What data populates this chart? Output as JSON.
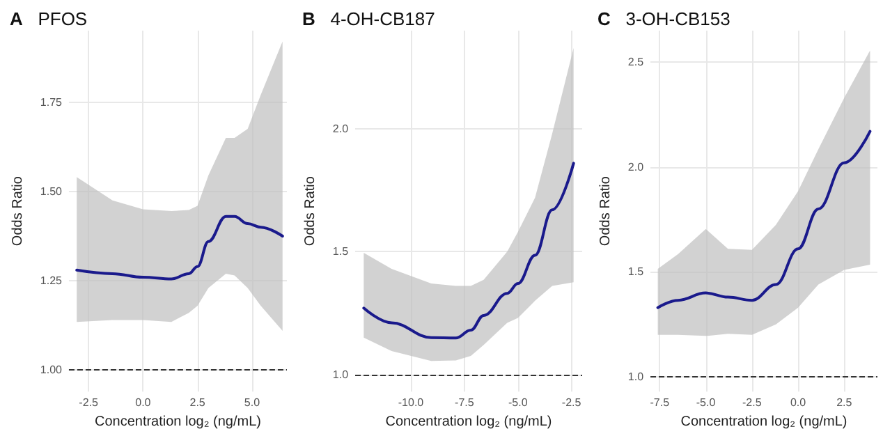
{
  "chart_data": [
    {
      "type": "line",
      "title": "A",
      "subtitle": "PFOS",
      "xlabel": "Concentration log₂ (ng/mL)",
      "ylabel": "Odds Ratio",
      "grid": true,
      "marker": "none",
      "line_style": "solid",
      "xlim": [
        -3.4,
        6.6
      ],
      "ylim": [
        0.94,
        1.95
      ],
      "xticks": [
        {
          "value": -2.5,
          "label": "-2.5"
        },
        {
          "value": 0,
          "label": "0.0"
        },
        {
          "value": 2.5,
          "label": "2.5"
        },
        {
          "value": 5,
          "label": "5.0"
        }
      ],
      "yticks": [
        {
          "value": 1,
          "label": "1.00"
        },
        {
          "value": 1.25,
          "label": "1.25"
        },
        {
          "value": 1.5,
          "label": "1.50"
        },
        {
          "value": 1.75,
          "label": "1.75"
        }
      ],
      "ref_lines": [
        {
          "axis": "y",
          "value": 1,
          "color": "#333333",
          "line_style": "dashed"
        }
      ],
      "series": [
        {
          "color": "#1a1a8c",
          "x": [
            -3.04,
            -1.4,
            0,
            1.3,
            2.1,
            2.5,
            3.0,
            3.8,
            4.2,
            4.8,
            5.4,
            6.4
          ],
          "values": [
            1.28,
            1.27,
            1.26,
            1.255,
            1.27,
            1.29,
            1.36,
            1.43,
            1.43,
            1.41,
            1.4,
            1.375
          ],
          "lower": [
            1.135,
            1.14,
            1.14,
            1.135,
            1.16,
            1.18,
            1.23,
            1.27,
            1.265,
            1.23,
            1.18,
            1.11
          ],
          "upper": [
            1.54,
            1.475,
            1.45,
            1.445,
            1.448,
            1.46,
            1.545,
            1.65,
            1.65,
            1.675,
            1.77,
            1.92
          ]
        }
      ]
    },
    {
      "type": "line",
      "title": "B",
      "subtitle": "4-OH-CB187",
      "xlabel": "Concentration log₂ (ng/mL)",
      "ylabel": "Odds Ratio",
      "grid": true,
      "marker": "none",
      "line_style": "solid",
      "xlim": [
        -12.6,
        -2.0
      ],
      "ylim": [
        0.93,
        2.4
      ],
      "xticks": [
        {
          "value": -10,
          "label": "-10.0"
        },
        {
          "value": -7.5,
          "label": "-7.5"
        },
        {
          "value": -5,
          "label": "-5.0"
        },
        {
          "value": -2.5,
          "label": "-2.5"
        }
      ],
      "yticks": [
        {
          "value": 1,
          "label": "1.0"
        },
        {
          "value": 1.5,
          "label": "1.5"
        },
        {
          "value": 2,
          "label": "2.0"
        }
      ],
      "ref_lines": [
        {
          "axis": "y",
          "value": 1,
          "color": "#333333",
          "line_style": "dashed"
        }
      ],
      "series": [
        {
          "color": "#1a1a8c",
          "x": [
            -12.2,
            -10.9,
            -9.05,
            -7.9,
            -7.2,
            -6.6,
            -5.5,
            -5.0,
            -4.2,
            -3.4,
            -2.4
          ],
          "values": [
            1.27,
            1.21,
            1.15,
            1.148,
            1.18,
            1.24,
            1.33,
            1.37,
            1.485,
            1.67,
            1.86
          ],
          "lower": [
            1.15,
            1.095,
            1.055,
            1.057,
            1.075,
            1.12,
            1.21,
            1.23,
            1.3,
            1.36,
            1.375
          ],
          "upper": [
            1.495,
            1.43,
            1.37,
            1.36,
            1.36,
            1.385,
            1.5,
            1.58,
            1.72,
            1.98,
            2.33
          ]
        }
      ]
    },
    {
      "type": "line",
      "title": "C",
      "subtitle": "3-OH-CB153",
      "xlabel": "Concentration log₂ (ng/mL)",
      "ylabel": "Odds Ratio",
      "grid": true,
      "marker": "none",
      "line_style": "solid",
      "xlim": [
        -8.0,
        4.3
      ],
      "ylim": [
        0.93,
        2.65
      ],
      "xticks": [
        {
          "value": -7.5,
          "label": "-7.5"
        },
        {
          "value": -5,
          "label": "-5.0"
        },
        {
          "value": -2.5,
          "label": "-2.5"
        },
        {
          "value": 0,
          "label": "0.0"
        },
        {
          "value": 2.5,
          "label": "2.5"
        }
      ],
      "yticks": [
        {
          "value": 1,
          "label": "1.0"
        },
        {
          "value": 1.5,
          "label": "1.5"
        },
        {
          "value": 2,
          "label": "2.0"
        },
        {
          "value": 2.5,
          "label": "2.5"
        }
      ],
      "ref_lines": [
        {
          "axis": "y",
          "value": 1,
          "color": "#333333",
          "line_style": "dashed"
        }
      ],
      "series": [
        {
          "color": "#1a1a8c",
          "x": [
            -7.6,
            -6.5,
            -5.0,
            -3.8,
            -2.5,
            -1.2,
            0,
            1.1,
            2.5,
            3.9
          ],
          "values": [
            1.33,
            1.365,
            1.4,
            1.38,
            1.365,
            1.44,
            1.61,
            1.8,
            2.02,
            2.17
          ],
          "lower": [
            1.2,
            1.2,
            1.195,
            1.205,
            1.2,
            1.25,
            1.33,
            1.44,
            1.51,
            1.535
          ],
          "upper": [
            1.515,
            1.585,
            1.705,
            1.61,
            1.605,
            1.725,
            1.885,
            2.085,
            2.33,
            2.555
          ]
        }
      ]
    }
  ]
}
